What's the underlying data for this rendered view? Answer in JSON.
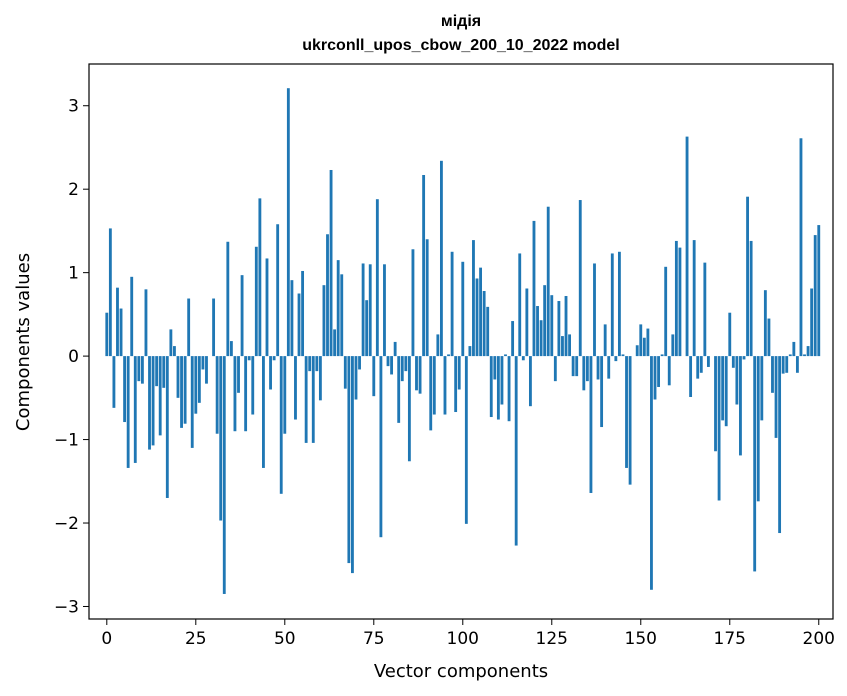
{
  "chart_data": {
    "type": "bar",
    "title": "мідія",
    "subtitle": "ukrconll_upos_cbow_200_10_2022 model",
    "xlabel": "Vector components",
    "ylabel": "Components values",
    "xlim": [
      -5,
      204
    ],
    "ylim": [
      -3.15,
      3.5
    ],
    "xticks": [
      0,
      25,
      50,
      75,
      100,
      125,
      150,
      175,
      200
    ],
    "yticks": [
      -3,
      -2,
      -1,
      0,
      1,
      2,
      3
    ],
    "grid": false,
    "legend": "none",
    "bar_color": "#1f77b4",
    "values": [
      0.52,
      1.53,
      -0.62,
      0.82,
      0.57,
      -0.79,
      -1.34,
      0.95,
      -1.28,
      -0.3,
      -0.33,
      0.8,
      -1.12,
      -1.07,
      -0.36,
      -0.95,
      -0.38,
      -1.7,
      0.32,
      0.12,
      -0.5,
      -0.86,
      -0.81,
      0.69,
      -1.1,
      -0.69,
      -0.56,
      -0.16,
      -0.33,
      0.0,
      0.69,
      -0.93,
      -1.97,
      -2.85,
      1.37,
      0.18,
      -0.9,
      -0.44,
      0.97,
      -0.9,
      -0.05,
      -0.7,
      1.31,
      1.89,
      -1.34,
      1.17,
      -0.4,
      -0.05,
      1.58,
      -1.65,
      -0.93,
      3.21,
      0.91,
      -0.76,
      0.75,
      1.02,
      -1.04,
      -0.18,
      -1.04,
      -0.18,
      -0.53,
      0.85,
      1.46,
      2.23,
      0.32,
      1.15,
      0.98,
      -0.39,
      -2.48,
      -2.6,
      -0.52,
      -0.16,
      1.11,
      0.67,
      1.1,
      -0.48,
      1.88,
      -2.17,
      1.1,
      -0.12,
      -0.22,
      0.17,
      -0.8,
      -0.3,
      -0.18,
      -1.26,
      1.28,
      -0.41,
      -0.45,
      2.17,
      1.4,
      -0.89,
      -0.7,
      0.26,
      2.34,
      -0.7,
      0.02,
      1.25,
      -0.67,
      -0.4,
      1.13,
      -2.01,
      0.12,
      1.39,
      0.93,
      1.06,
      0.78,
      0.59,
      -0.73,
      -0.28,
      -0.76,
      -0.58,
      0.02,
      -0.78,
      0.42,
      -2.27,
      1.23,
      -0.05,
      0.81,
      -0.6,
      1.62,
      0.6,
      0.43,
      0.85,
      1.79,
      0.73,
      -0.3,
      0.66,
      0.24,
      0.72,
      0.26,
      -0.24,
      -0.24,
      1.87,
      -0.41,
      -0.3,
      -1.64,
      1.11,
      -0.28,
      -0.85,
      0.38,
      -0.27,
      1.23,
      -0.06,
      1.25,
      0.02,
      -1.34,
      -1.54,
      0.0,
      0.13,
      0.38,
      0.22,
      0.33,
      -2.8,
      -0.52,
      -0.37,
      0.02,
      1.07,
      -0.35,
      0.26,
      1.38,
      1.3,
      0.0,
      2.63,
      -0.49,
      1.39,
      -0.27,
      -0.2,
      1.12,
      -0.13,
      0.0,
      -1.14,
      -1.73,
      -0.77,
      -0.84,
      0.52,
      -0.14,
      -0.58,
      -1.19,
      -0.04,
      1.91,
      1.38,
      -2.58,
      -1.74,
      -0.77,
      0.79,
      0.45,
      -0.44,
      -0.98,
      -2.12,
      -0.21,
      -0.2,
      0.02,
      0.17,
      -0.2,
      2.61,
      0.02,
      0.12,
      0.81,
      1.45,
      1.57
    ]
  }
}
